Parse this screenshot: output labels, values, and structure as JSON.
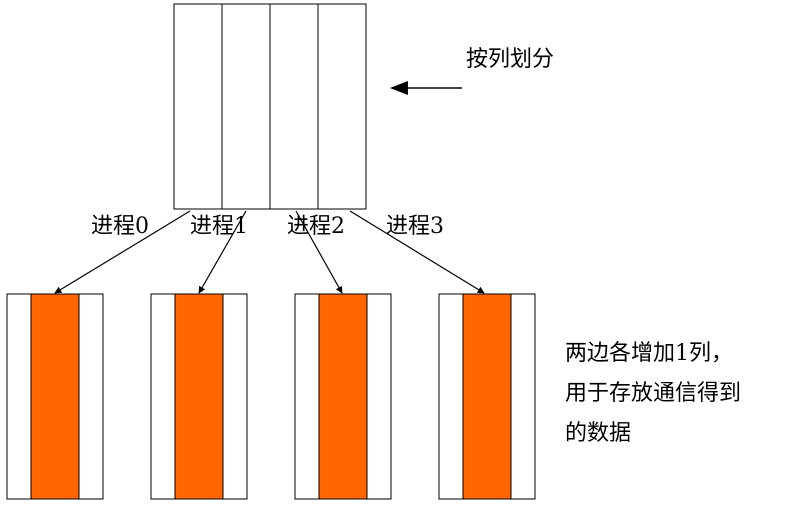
{
  "title_label": "按列划分",
  "process_labels": [
    {
      "prefix": "进程",
      "num": "0"
    },
    {
      "prefix": "进程",
      "num": "1"
    },
    {
      "prefix": "进程",
      "num": "2"
    },
    {
      "prefix": "进程",
      "num": "3"
    }
  ],
  "note_lines": [
    {
      "text_before": "两边各增加",
      "num": "1",
      "text_after": "列，"
    },
    {
      "text_before": "用于存放通信得到",
      "num": "",
      "text_after": ""
    },
    {
      "text_before": "的数据",
      "num": "",
      "text_after": ""
    }
  ],
  "colors": {
    "stroke": "#000000",
    "core_fill": "#ff6600",
    "background": "#ffffff"
  },
  "icons": {
    "pointer": "left-arrow-icon",
    "split": "down-arrow-icon"
  }
}
